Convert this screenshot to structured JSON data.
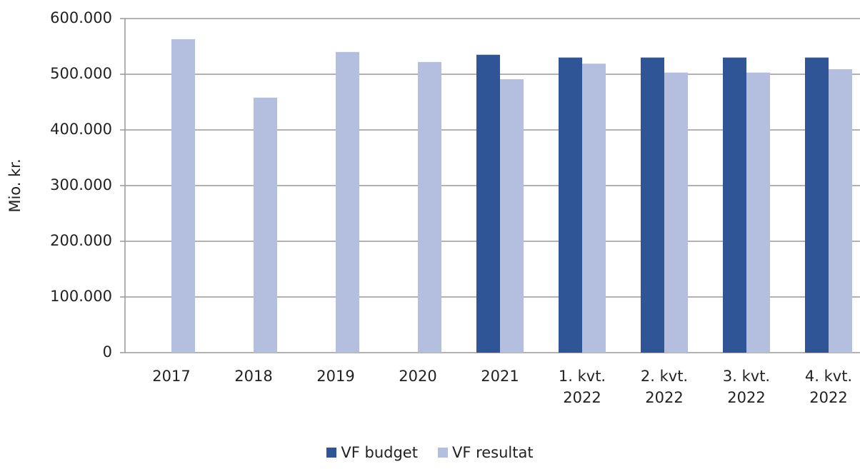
{
  "chart_data": {
    "type": "bar",
    "y_label": "Mio. kr.",
    "categories": [
      "2017",
      "2018",
      "2019",
      "2020",
      "2021",
      "1. kvt. 2022",
      "2. kvt. 2022",
      "3. kvt. 2022",
      "4. kvt. 2022"
    ],
    "series": [
      {
        "name": "VF budget",
        "color": "#2f5597",
        "values": [
          null,
          null,
          null,
          null,
          535000,
          530000,
          530000,
          530000,
          530000
        ]
      },
      {
        "name": "VF resultat",
        "color": "#b4bfe0",
        "values": [
          563000,
          458000,
          540000,
          522000,
          491000,
          519000,
          503000,
          503000,
          509000
        ]
      }
    ],
    "ylim": [
      0,
      600000
    ],
    "yticks": [
      0,
      {
        "value": 100000,
        "label": "100.000"
      },
      {
        "value": 200000,
        "label": "200.000"
      },
      {
        "value": 300000,
        "label": "300.000"
      },
      {
        "value": 400000,
        "label": "400.000"
      },
      {
        "value": 500000,
        "label": "500.000"
      },
      {
        "value": 600000,
        "label": "600.000"
      }
    ],
    "grid": true
  }
}
